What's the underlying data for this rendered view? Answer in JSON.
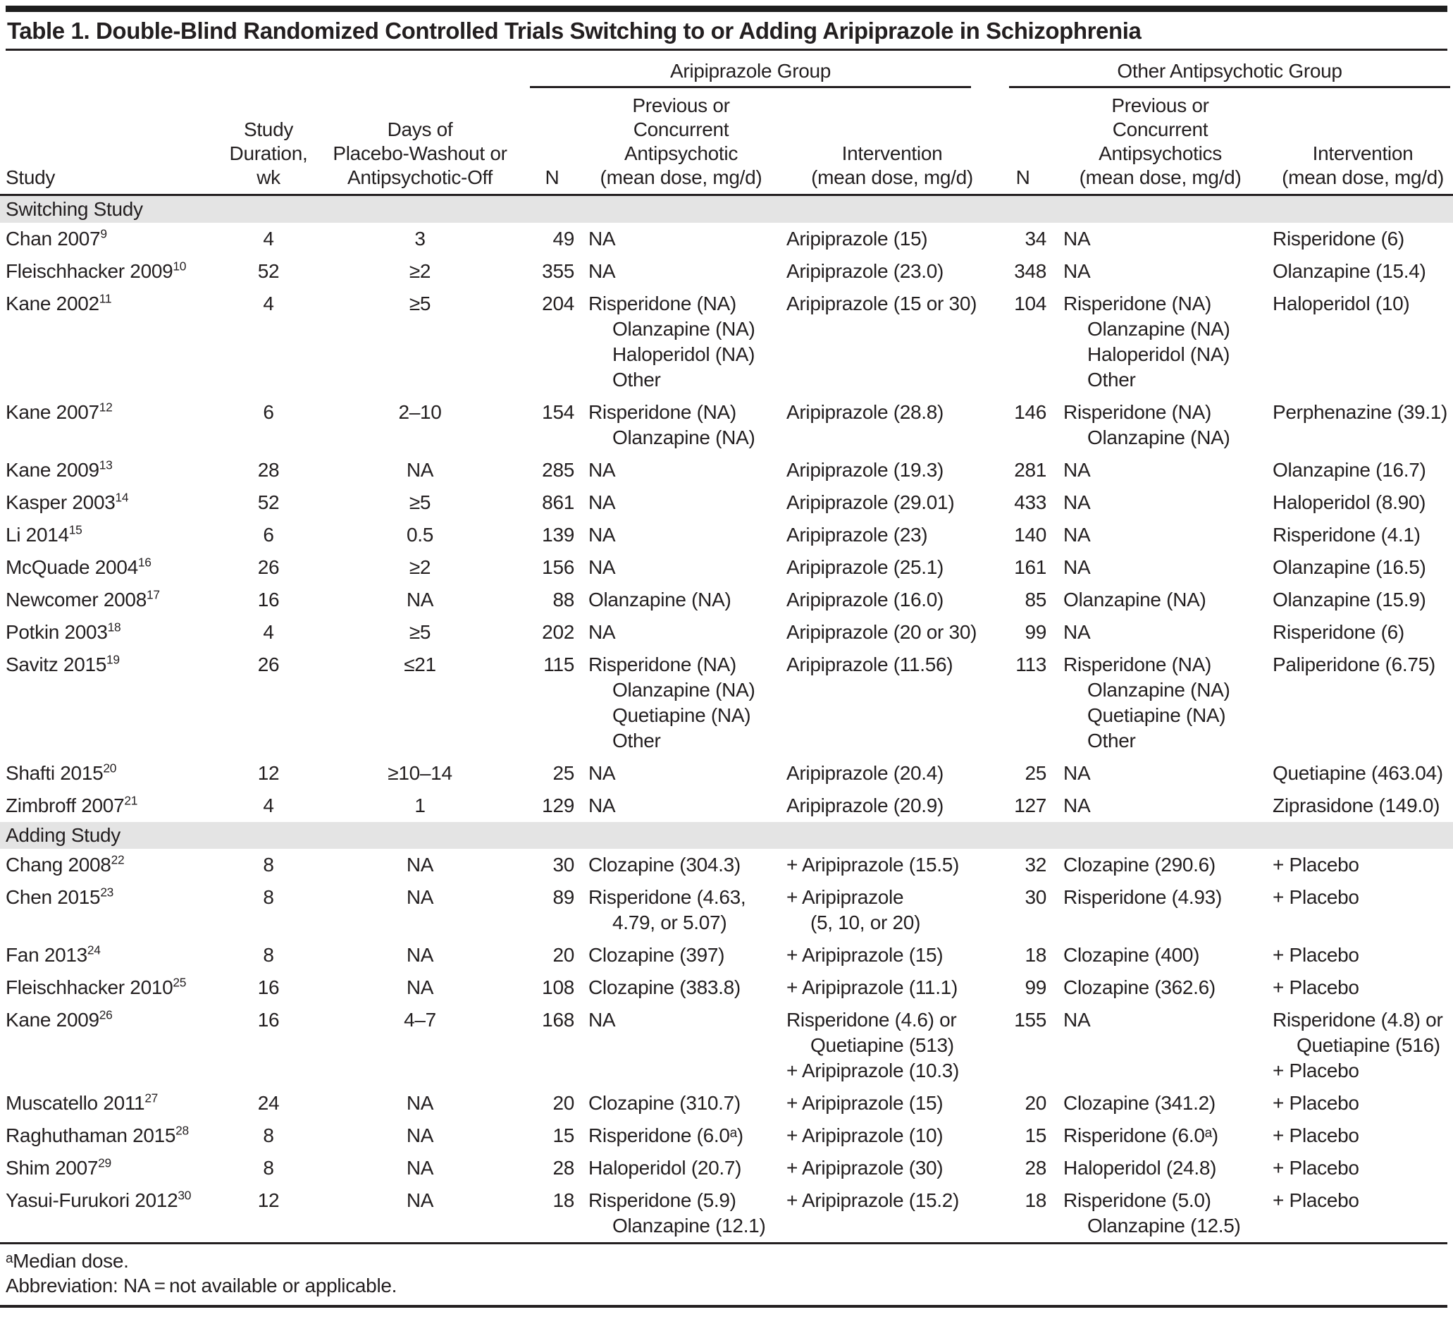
{
  "title": "Table 1. Double-Blind Randomized Controlled Trials Switching to or Adding Aripiprazole in Schizophrenia",
  "header": {
    "col_study": "Study",
    "col_duration": "Study\nDuration,\nwk",
    "col_washout": "Days of\nPlacebo-Washout or\nAntipsychotic-Off",
    "col_n": "N",
    "group1": {
      "label": "Aripiprazole Group",
      "col_prev": "Previous or\nConcurrent\nAntipsychotic\n(mean dose, mg/d)",
      "col_int": "Intervention\n(mean dose, mg/d)"
    },
    "group2": {
      "label": "Other Antipsychotic Group",
      "col_prev": "Previous or\nConcurrent\nAntipsychotics\n(mean dose, mg/d)",
      "col_int": "Intervention\n(mean dose, mg/d)"
    }
  },
  "sections": [
    {
      "label": "Switching Study",
      "rows": [
        {
          "study": "Chan 2007",
          "ref": "9",
          "duration": "4",
          "washout": "3",
          "n1": "49",
          "prev1": "NA",
          "int1": "Aripiprazole (15)",
          "n2": "34",
          "prev2": "NA",
          "int2": "Risperidone (6)"
        },
        {
          "study": "Fleischhacker 2009",
          "ref": "10",
          "duration": "52",
          "washout": "≥2",
          "n1": "355",
          "prev1": "NA",
          "int1": "Aripiprazole (23.0)",
          "n2": "348",
          "prev2": "NA",
          "int2": "Olanzapine (15.4)"
        },
        {
          "study": "Kane 2002",
          "ref": "11",
          "duration": "4",
          "washout": "≥5",
          "n1": "204",
          "prev1": [
            {
              "t": "Risperidone (NA)"
            },
            {
              "t": "Olanzapine (NA)",
              "ind": 1
            },
            {
              "t": "Haloperidol (NA)",
              "ind": 1
            },
            {
              "t": "Other",
              "ind": 1
            }
          ],
          "int1": "Aripiprazole (15 or 30)",
          "n2": "104",
          "prev2": [
            {
              "t": "Risperidone (NA)"
            },
            {
              "t": "Olanzapine (NA)",
              "ind": 1
            },
            {
              "t": "Haloperidol (NA)",
              "ind": 1
            },
            {
              "t": "Other",
              "ind": 1
            }
          ],
          "int2": "Haloperidol (10)"
        },
        {
          "study": "Kane 2007",
          "ref": "12",
          "duration": "6",
          "washout": "2–10",
          "n1": "154",
          "prev1": [
            {
              "t": "Risperidone (NA)"
            },
            {
              "t": "Olanzapine (NA)",
              "ind": 1
            }
          ],
          "int1": "Aripiprazole (28.8)",
          "n2": "146",
          "prev2": [
            {
              "t": "Risperidone (NA)"
            },
            {
              "t": "Olanzapine (NA)",
              "ind": 1
            }
          ],
          "int2": "Perphenazine (39.1)"
        },
        {
          "study": "Kane 2009",
          "ref": "13",
          "duration": "28",
          "washout": "NA",
          "n1": "285",
          "prev1": "NA",
          "int1": "Aripiprazole (19.3)",
          "n2": "281",
          "prev2": "NA",
          "int2": "Olanzapine (16.7)"
        },
        {
          "study": "Kasper 2003",
          "ref": "14",
          "duration": "52",
          "washout": "≥5",
          "n1": "861",
          "prev1": "NA",
          "int1": "Aripiprazole (29.01)",
          "n2": "433",
          "prev2": "NA",
          "int2": "Haloperidol (8.90)"
        },
        {
          "study": "Li 2014",
          "ref": "15",
          "duration": "6",
          "washout": "0.5",
          "n1": "139",
          "prev1": "NA",
          "int1": "Aripiprazole (23)",
          "n2": "140",
          "prev2": "NA",
          "int2": "Risperidone (4.1)"
        },
        {
          "study": "McQuade 2004",
          "ref": "16",
          "duration": "26",
          "washout": "≥2",
          "n1": "156",
          "prev1": "NA",
          "int1": "Aripiprazole (25.1)",
          "n2": "161",
          "prev2": "NA",
          "int2": "Olanzapine (16.5)"
        },
        {
          "study": "Newcomer 2008",
          "ref": "17",
          "duration": "16",
          "washout": "NA",
          "n1": "88",
          "prev1": "Olanzapine (NA)",
          "int1": "Aripiprazole (16.0)",
          "n2": "85",
          "prev2": "Olanzapine (NA)",
          "int2": "Olanzapine (15.9)"
        },
        {
          "study": "Potkin 2003",
          "ref": "18",
          "duration": "4",
          "washout": "≥5",
          "n1": "202",
          "prev1": "NA",
          "int1": "Aripiprazole (20 or 30)",
          "n2": "99",
          "prev2": "NA",
          "int2": "Risperidone (6)"
        },
        {
          "study": "Savitz 2015",
          "ref": "19",
          "duration": "26",
          "washout": "≤21",
          "n1": "115",
          "prev1": [
            {
              "t": "Risperidone (NA)"
            },
            {
              "t": "Olanzapine (NA)",
              "ind": 1
            },
            {
              "t": "Quetiapine (NA)",
              "ind": 1
            },
            {
              "t": "Other",
              "ind": 1
            }
          ],
          "int1": "Aripiprazole (11.56)",
          "n2": "113",
          "prev2": [
            {
              "t": "Risperidone (NA)"
            },
            {
              "t": "Olanzapine (NA)",
              "ind": 1
            },
            {
              "t": "Quetiapine (NA)",
              "ind": 1
            },
            {
              "t": "Other",
              "ind": 1
            }
          ],
          "int2": "Paliperidone (6.75)"
        },
        {
          "study": "Shafti 2015",
          "ref": "20",
          "duration": "12",
          "washout": "≥10–14",
          "n1": "25",
          "prev1": "NA",
          "int1": "Aripiprazole (20.4)",
          "n2": "25",
          "prev2": "NA",
          "int2": "Quetiapine (463.04)"
        },
        {
          "study": "Zimbroff 2007",
          "ref": "21",
          "duration": "4",
          "washout": "1",
          "n1": "129",
          "prev1": "NA",
          "int1": "Aripiprazole (20.9)",
          "n2": "127",
          "prev2": "NA",
          "int2": "Ziprasidone (149.0)"
        }
      ]
    },
    {
      "label": "Adding Study",
      "rows": [
        {
          "study": "Chang 2008",
          "ref": "22",
          "duration": "8",
          "washout": "NA",
          "n1": "30",
          "prev1": "Clozapine (304.3)",
          "int1": "+ Aripiprazole (15.5)",
          "n2": "32",
          "prev2": "Clozapine (290.6)",
          "int2": "+ Placebo"
        },
        {
          "study": "Chen 2015",
          "ref": "23",
          "duration": "8",
          "washout": "NA",
          "n1": "89",
          "prev1": [
            {
              "t": "Risperidone (4.63,"
            },
            {
              "t": "4.79, or 5.07)",
              "ind": 1
            }
          ],
          "int1": [
            {
              "t": "+ Aripiprazole"
            },
            {
              "t": "(5, 10, or 20)",
              "ind": 1
            }
          ],
          "n2": "30",
          "prev2": "Risperidone (4.93)",
          "int2": "+ Placebo"
        },
        {
          "study": "Fan 2013",
          "ref": "24",
          "duration": "8",
          "washout": "NA",
          "n1": "20",
          "prev1": "Clozapine (397)",
          "int1": "+ Aripiprazole (15)",
          "n2": "18",
          "prev2": "Clozapine (400)",
          "int2": "+ Placebo"
        },
        {
          "study": "Fleischhacker 2010",
          "ref": "25",
          "duration": "16",
          "washout": "NA",
          "n1": "108",
          "prev1": "Clozapine (383.8)",
          "int1": "+ Aripiprazole (11.1)",
          "n2": "99",
          "prev2": "Clozapine (362.6)",
          "int2": "+ Placebo"
        },
        {
          "study": "Kane 2009",
          "ref": "26",
          "duration": "16",
          "washout": "4–7",
          "n1": "168",
          "prev1": "NA",
          "int1": [
            {
              "t": "Risperidone (4.6) or"
            },
            {
              "t": "Quetiapine (513)",
              "ind": 1
            },
            {
              "t": "+ Aripiprazole (10.3)"
            }
          ],
          "n2": "155",
          "prev2": "NA",
          "int2": [
            {
              "t": "Risperidone (4.8) or"
            },
            {
              "t": "Quetiapine (516)",
              "ind": 1
            },
            {
              "t": "+ Placebo"
            }
          ]
        },
        {
          "study": "Muscatello 2011",
          "ref": "27",
          "duration": "24",
          "washout": "NA",
          "n1": "20",
          "prev1": "Clozapine (310.7)",
          "int1": "+ Aripiprazole (15)",
          "n2": "20",
          "prev2": "Clozapine (341.2)",
          "int2": "+ Placebo"
        },
        {
          "study": "Raghuthaman 2015",
          "ref": "28",
          "duration": "8",
          "washout": "NA",
          "n1": "15",
          "prev1": "Risperidone (6.0ᵃ)",
          "int1": "+ Aripiprazole (10)",
          "n2": "15",
          "prev2": "Risperidone (6.0ᵃ)",
          "int2": "+ Placebo"
        },
        {
          "study": "Shim 2007",
          "ref": "29",
          "duration": "8",
          "washout": "NA",
          "n1": "28",
          "prev1": "Haloperidol (20.7)",
          "int1": "+ Aripiprazole (30)",
          "n2": "28",
          "prev2": "Haloperidol (24.8)",
          "int2": "+ Placebo"
        },
        {
          "study": "Yasui-Furukori 2012",
          "ref": "30",
          "duration": "12",
          "washout": "NA",
          "n1": "18",
          "prev1": [
            {
              "t": "Risperidone (5.9)"
            },
            {
              "t": "Olanzapine (12.1)",
              "ind": 1
            }
          ],
          "int1": "+ Aripiprazole (15.2)",
          "n2": "18",
          "prev2": [
            {
              "t": "Risperidone (5.0)"
            },
            {
              "t": "Olanzapine (12.5)",
              "ind": 1
            }
          ],
          "int2": "+ Placebo"
        }
      ]
    }
  ],
  "footnotes": [
    "ᵃMedian dose.",
    "Abbreviation: NA = not available or applicable."
  ]
}
